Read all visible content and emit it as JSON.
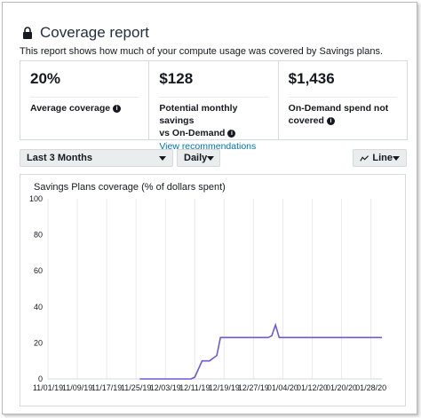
{
  "header": {
    "title": "Coverage report",
    "description": "This report shows how much of your compute usage was covered by Savings plans."
  },
  "kpis": [
    {
      "value": "20%",
      "label": "Average coverage"
    },
    {
      "value": "$128",
      "label_line1": "Potential monthly savings",
      "label_line2": "vs On-Demand",
      "link": "View recommendations"
    },
    {
      "value": "$1,436",
      "label_line1": "On-Demand spend not",
      "label_line2": "covered"
    }
  ],
  "controls": {
    "range": "Last 3 Months",
    "granularity": "Daily",
    "chart_type": "Line"
  },
  "colors": {
    "line": "#6e5ad6",
    "accent_link": "#0073bb"
  },
  "icons": {
    "title": "lock-icon",
    "info": "info-icon",
    "chart_type": "line-chart-icon"
  },
  "chart_data": {
    "type": "line",
    "title": "Savings Plans coverage (% of dollars spent)",
    "ylim": [
      0,
      100
    ],
    "yticks": [
      0,
      20,
      40,
      60,
      80,
      100
    ],
    "xticks": [
      "11/01/19",
      "11/09/19",
      "11/17/19",
      "11/25/19",
      "12/03/19",
      "12/11/19",
      "12/19/19",
      "12/27/19",
      "01/04/20",
      "01/12/20",
      "01/20/20",
      "01/28/20"
    ],
    "x_range": [
      "11/01/19",
      "01/31/20"
    ],
    "series": [
      {
        "x": [
          "11/26/19",
          "12/10/19",
          "12/11/19",
          "12/13/19",
          "12/14/19",
          "12/15/19",
          "12/17/19",
          "12/18/19",
          "12/19/19",
          "12/26/19",
          "12/31/19",
          "01/01/20",
          "01/02/20",
          "01/03/20",
          "01/20/20",
          "01/29/20",
          "01/31/20"
        ],
        "values": [
          0,
          0,
          1,
          10,
          10,
          10,
          13,
          23,
          23,
          23,
          23,
          24,
          30,
          23,
          23,
          23,
          23
        ]
      }
    ],
    "grid": "vertical"
  }
}
